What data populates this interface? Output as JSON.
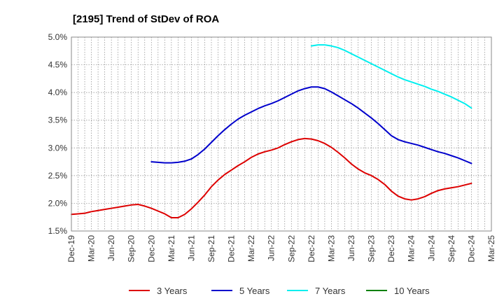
{
  "chart_data": {
    "type": "line",
    "title": "[2195]  Trend of StDev of ROA",
    "xlabel": "",
    "ylabel": "",
    "x_ticks": [
      "Dec-19",
      "Mar-20",
      "Jun-20",
      "Sep-20",
      "Dec-20",
      "Mar-21",
      "Jun-21",
      "Sep-21",
      "Dec-21",
      "Mar-22",
      "Jun-22",
      "Sep-22",
      "Dec-22",
      "Mar-23",
      "Jun-23",
      "Sep-23",
      "Dec-23",
      "Mar-24",
      "Jun-24",
      "Sep-24",
      "Dec-24",
      "Mar-25"
    ],
    "y_ticks": [
      "1.5%",
      "2.0%",
      "2.5%",
      "3.0%",
      "3.5%",
      "4.0%",
      "4.5%",
      "5.0%"
    ],
    "y_tick_values": [
      1.5,
      2.0,
      2.5,
      3.0,
      3.5,
      4.0,
      4.5,
      5.0
    ],
    "ylim": [
      1.5,
      5.0
    ],
    "y_unit": "%",
    "grid": true,
    "legend_position": "bottom",
    "series": [
      {
        "name": "3 Years",
        "color": "#dd0000",
        "points": [
          [
            "Dec-19",
            1.8
          ],
          [
            "Jan-20",
            1.81
          ],
          [
            "Feb-20",
            1.82
          ],
          [
            "Mar-20",
            1.85
          ],
          [
            "Apr-20",
            1.87
          ],
          [
            "May-20",
            1.89
          ],
          [
            "Jun-20",
            1.91
          ],
          [
            "Jul-20",
            1.93
          ],
          [
            "Aug-20",
            1.95
          ],
          [
            "Sep-20",
            1.97
          ],
          [
            "Oct-20",
            1.98
          ],
          [
            "Nov-20",
            1.95
          ],
          [
            "Dec-20",
            1.91
          ],
          [
            "Jan-21",
            1.86
          ],
          [
            "Feb-21",
            1.81
          ],
          [
            "Mar-21",
            1.74
          ],
          [
            "Apr-21",
            1.74
          ],
          [
            "May-21",
            1.8
          ],
          [
            "Jun-21",
            1.9
          ],
          [
            "Jul-21",
            2.02
          ],
          [
            "Aug-21",
            2.15
          ],
          [
            "Sep-21",
            2.3
          ],
          [
            "Oct-21",
            2.42
          ],
          [
            "Nov-21",
            2.52
          ],
          [
            "Dec-21",
            2.6
          ],
          [
            "Jan-22",
            2.68
          ],
          [
            "Feb-22",
            2.75
          ],
          [
            "Mar-22",
            2.83
          ],
          [
            "Apr-22",
            2.89
          ],
          [
            "May-22",
            2.93
          ],
          [
            "Jun-22",
            2.96
          ],
          [
            "Jul-22",
            3.0
          ],
          [
            "Aug-22",
            3.06
          ],
          [
            "Sep-22",
            3.11
          ],
          [
            "Oct-22",
            3.15
          ],
          [
            "Nov-22",
            3.17
          ],
          [
            "Dec-22",
            3.16
          ],
          [
            "Jan-23",
            3.13
          ],
          [
            "Feb-23",
            3.08
          ],
          [
            "Mar-23",
            3.01
          ],
          [
            "Apr-23",
            2.92
          ],
          [
            "May-23",
            2.82
          ],
          [
            "Jun-23",
            2.71
          ],
          [
            "Jul-23",
            2.62
          ],
          [
            "Aug-23",
            2.55
          ],
          [
            "Sep-23",
            2.5
          ],
          [
            "Oct-23",
            2.43
          ],
          [
            "Nov-23",
            2.34
          ],
          [
            "Dec-23",
            2.22
          ],
          [
            "Jan-24",
            2.13
          ],
          [
            "Feb-24",
            2.08
          ],
          [
            "Mar-24",
            2.06
          ],
          [
            "Apr-24",
            2.08
          ],
          [
            "May-24",
            2.12
          ],
          [
            "Jun-24",
            2.18
          ],
          [
            "Jul-24",
            2.23
          ],
          [
            "Aug-24",
            2.26
          ],
          [
            "Sep-24",
            2.28
          ],
          [
            "Oct-24",
            2.3
          ],
          [
            "Nov-24",
            2.33
          ],
          [
            "Dec-24",
            2.36
          ]
        ]
      },
      {
        "name": "5 Years",
        "color": "#0000cc",
        "points": [
          [
            "Dec-20",
            2.75
          ],
          [
            "Jan-21",
            2.74
          ],
          [
            "Feb-21",
            2.73
          ],
          [
            "Mar-21",
            2.73
          ],
          [
            "Apr-21",
            2.74
          ],
          [
            "May-21",
            2.76
          ],
          [
            "Jun-21",
            2.8
          ],
          [
            "Jul-21",
            2.88
          ],
          [
            "Aug-21",
            2.98
          ],
          [
            "Sep-21",
            3.1
          ],
          [
            "Oct-21",
            3.22
          ],
          [
            "Nov-21",
            3.33
          ],
          [
            "Dec-21",
            3.43
          ],
          [
            "Jan-22",
            3.52
          ],
          [
            "Feb-22",
            3.59
          ],
          [
            "Mar-22",
            3.65
          ],
          [
            "Apr-22",
            3.71
          ],
          [
            "May-22",
            3.76
          ],
          [
            "Jun-22",
            3.8
          ],
          [
            "Jul-22",
            3.85
          ],
          [
            "Aug-22",
            3.91
          ],
          [
            "Sep-22",
            3.97
          ],
          [
            "Oct-22",
            4.03
          ],
          [
            "Nov-22",
            4.07
          ],
          [
            "Dec-22",
            4.1
          ],
          [
            "Jan-23",
            4.1
          ],
          [
            "Feb-23",
            4.07
          ],
          [
            "Mar-23",
            4.01
          ],
          [
            "Apr-23",
            3.94
          ],
          [
            "May-23",
            3.87
          ],
          [
            "Jun-23",
            3.8
          ],
          [
            "Jul-23",
            3.72
          ],
          [
            "Aug-23",
            3.63
          ],
          [
            "Sep-23",
            3.54
          ],
          [
            "Oct-23",
            3.44
          ],
          [
            "Nov-23",
            3.33
          ],
          [
            "Dec-23",
            3.22
          ],
          [
            "Jan-24",
            3.15
          ],
          [
            "Feb-24",
            3.11
          ],
          [
            "Mar-24",
            3.08
          ],
          [
            "Apr-24",
            3.05
          ],
          [
            "May-24",
            3.01
          ],
          [
            "Jun-24",
            2.97
          ],
          [
            "Jul-24",
            2.93
          ],
          [
            "Aug-24",
            2.9
          ],
          [
            "Sep-24",
            2.86
          ],
          [
            "Oct-24",
            2.82
          ],
          [
            "Nov-24",
            2.77
          ],
          [
            "Dec-24",
            2.72
          ]
        ]
      },
      {
        "name": "7 Years",
        "color": "#00eeee",
        "points": [
          [
            "Dec-22",
            4.84
          ],
          [
            "Jan-23",
            4.86
          ],
          [
            "Feb-23",
            4.86
          ],
          [
            "Mar-23",
            4.84
          ],
          [
            "Apr-23",
            4.81
          ],
          [
            "May-23",
            4.76
          ],
          [
            "Jun-23",
            4.7
          ],
          [
            "Jul-23",
            4.64
          ],
          [
            "Aug-23",
            4.58
          ],
          [
            "Sep-23",
            4.52
          ],
          [
            "Oct-23",
            4.46
          ],
          [
            "Nov-23",
            4.4
          ],
          [
            "Dec-23",
            4.34
          ],
          [
            "Jan-24",
            4.28
          ],
          [
            "Feb-24",
            4.23
          ],
          [
            "Mar-24",
            4.19
          ],
          [
            "Apr-24",
            4.15
          ],
          [
            "May-24",
            4.11
          ],
          [
            "Jun-24",
            4.06
          ],
          [
            "Jul-24",
            4.02
          ],
          [
            "Aug-24",
            3.97
          ],
          [
            "Sep-24",
            3.92
          ],
          [
            "Oct-24",
            3.86
          ],
          [
            "Nov-24",
            3.8
          ],
          [
            "Dec-24",
            3.72
          ]
        ]
      },
      {
        "name": "10 Years",
        "color": "#008000",
        "points": []
      }
    ]
  }
}
